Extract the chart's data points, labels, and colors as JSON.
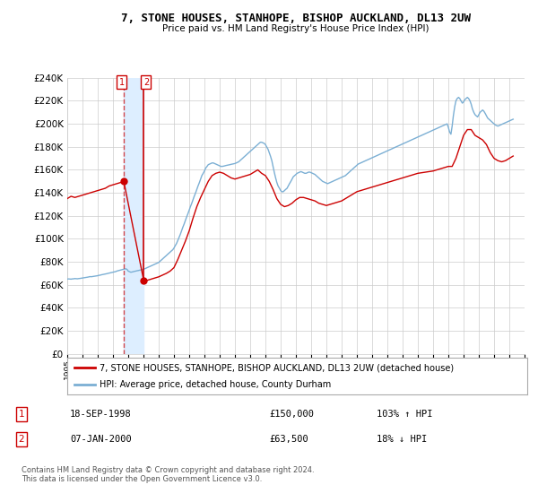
{
  "title": "7, STONE HOUSES, STANHOPE, BISHOP AUCKLAND, DL13 2UW",
  "subtitle": "Price paid vs. HM Land Registry's House Price Index (HPI)",
  "ylim": [
    0,
    240000
  ],
  "yticks": [
    0,
    20000,
    40000,
    60000,
    80000,
    100000,
    120000,
    140000,
    160000,
    180000,
    200000,
    220000,
    240000
  ],
  "background_color": "#ffffff",
  "grid_color": "#cccccc",
  "hpi_color": "#7bafd4",
  "price_color": "#cc0000",
  "shade_color": "#ddeeff",
  "t1_date": 1998.71,
  "t1_price": 150000,
  "t2_date": 2000.02,
  "t2_price": 63500,
  "legend_line1": "7, STONE HOUSES, STANHOPE, BISHOP AUCKLAND, DL13 2UW (detached house)",
  "legend_line2": "HPI: Average price, detached house, County Durham",
  "row1_date": "18-SEP-1998",
  "row1_price": "£150,000",
  "row1_hpi": "103% ↑ HPI",
  "row2_date": "07-JAN-2000",
  "row2_price": "£63,500",
  "row2_hpi": "18% ↓ HPI",
  "footer": "Contains HM Land Registry data © Crown copyright and database right 2024.\nThis data is licensed under the Open Government Licence v3.0.",
  "hpi_data_x": [
    1995.0,
    1995.08,
    1995.17,
    1995.25,
    1995.33,
    1995.42,
    1995.5,
    1995.58,
    1995.67,
    1995.75,
    1995.83,
    1995.92,
    1996.0,
    1996.08,
    1996.17,
    1996.25,
    1996.33,
    1996.42,
    1996.5,
    1996.58,
    1996.67,
    1996.75,
    1996.83,
    1996.92,
    1997.0,
    1997.08,
    1997.17,
    1997.25,
    1997.33,
    1997.42,
    1997.5,
    1997.58,
    1997.67,
    1997.75,
    1997.83,
    1997.92,
    1998.0,
    1998.08,
    1998.17,
    1998.25,
    1998.33,
    1998.42,
    1998.5,
    1998.58,
    1998.67,
    1998.75,
    1998.83,
    1998.92,
    1999.0,
    1999.08,
    1999.17,
    1999.25,
    1999.33,
    1999.42,
    1999.5,
    1999.58,
    1999.67,
    1999.75,
    1999.83,
    1999.92,
    2000.0,
    2000.08,
    2000.17,
    2000.25,
    2000.33,
    2000.42,
    2000.5,
    2000.58,
    2000.67,
    2000.75,
    2000.83,
    2000.92,
    2001.0,
    2001.08,
    2001.17,
    2001.25,
    2001.33,
    2001.42,
    2001.5,
    2001.58,
    2001.67,
    2001.75,
    2001.83,
    2001.92,
    2002.0,
    2002.08,
    2002.17,
    2002.25,
    2002.33,
    2002.42,
    2002.5,
    2002.58,
    2002.67,
    2002.75,
    2002.83,
    2002.92,
    2003.0,
    2003.08,
    2003.17,
    2003.25,
    2003.33,
    2003.42,
    2003.5,
    2003.58,
    2003.67,
    2003.75,
    2003.83,
    2003.92,
    2004.0,
    2004.08,
    2004.17,
    2004.25,
    2004.33,
    2004.42,
    2004.5,
    2004.58,
    2004.67,
    2004.75,
    2004.83,
    2004.92,
    2005.0,
    2005.08,
    2005.17,
    2005.25,
    2005.33,
    2005.42,
    2005.5,
    2005.58,
    2005.67,
    2005.75,
    2005.83,
    2005.92,
    2006.0,
    2006.08,
    2006.17,
    2006.25,
    2006.33,
    2006.42,
    2006.5,
    2006.58,
    2006.67,
    2006.75,
    2006.83,
    2006.92,
    2007.0,
    2007.08,
    2007.17,
    2007.25,
    2007.33,
    2007.42,
    2007.5,
    2007.58,
    2007.67,
    2007.75,
    2007.83,
    2007.92,
    2008.0,
    2008.08,
    2008.17,
    2008.25,
    2008.33,
    2008.42,
    2008.5,
    2008.58,
    2008.67,
    2008.75,
    2008.83,
    2008.92,
    2009.0,
    2009.08,
    2009.17,
    2009.25,
    2009.33,
    2009.42,
    2009.5,
    2009.58,
    2009.67,
    2009.75,
    2009.83,
    2009.92,
    2010.0,
    2010.08,
    2010.17,
    2010.25,
    2010.33,
    2010.42,
    2010.5,
    2010.58,
    2010.67,
    2010.75,
    2010.83,
    2010.92,
    2011.0,
    2011.08,
    2011.17,
    2011.25,
    2011.33,
    2011.42,
    2011.5,
    2011.58,
    2011.67,
    2011.75,
    2011.83,
    2011.92,
    2012.0,
    2012.08,
    2012.17,
    2012.25,
    2012.33,
    2012.42,
    2012.5,
    2012.58,
    2012.67,
    2012.75,
    2012.83,
    2012.92,
    2013.0,
    2013.08,
    2013.17,
    2013.25,
    2013.33,
    2013.42,
    2013.5,
    2013.58,
    2013.67,
    2013.75,
    2013.83,
    2013.92,
    2014.0,
    2014.08,
    2014.17,
    2014.25,
    2014.33,
    2014.42,
    2014.5,
    2014.58,
    2014.67,
    2014.75,
    2014.83,
    2014.92,
    2015.0,
    2015.08,
    2015.17,
    2015.25,
    2015.33,
    2015.42,
    2015.5,
    2015.58,
    2015.67,
    2015.75,
    2015.83,
    2015.92,
    2016.0,
    2016.08,
    2016.17,
    2016.25,
    2016.33,
    2016.42,
    2016.5,
    2016.58,
    2016.67,
    2016.75,
    2016.83,
    2016.92,
    2017.0,
    2017.08,
    2017.17,
    2017.25,
    2017.33,
    2017.42,
    2017.5,
    2017.58,
    2017.67,
    2017.75,
    2017.83,
    2017.92,
    2018.0,
    2018.08,
    2018.17,
    2018.25,
    2018.33,
    2018.42,
    2018.5,
    2018.58,
    2018.67,
    2018.75,
    2018.83,
    2018.92,
    2019.0,
    2019.08,
    2019.17,
    2019.25,
    2019.33,
    2019.42,
    2019.5,
    2019.58,
    2019.67,
    2019.75,
    2019.83,
    2019.92,
    2020.0,
    2020.08,
    2020.17,
    2020.25,
    2020.33,
    2020.42,
    2020.5,
    2020.58,
    2020.67,
    2020.75,
    2020.83,
    2020.92,
    2021.0,
    2021.08,
    2021.17,
    2021.25,
    2021.33,
    2021.42,
    2021.5,
    2021.58,
    2021.67,
    2021.75,
    2021.83,
    2021.92,
    2022.0,
    2022.08,
    2022.17,
    2022.25,
    2022.33,
    2022.42,
    2022.5,
    2022.58,
    2022.67,
    2022.75,
    2022.83,
    2022.92,
    2023.0,
    2023.08,
    2023.17,
    2023.25,
    2023.33,
    2023.42,
    2023.5,
    2023.58,
    2023.67,
    2023.75,
    2023.83,
    2023.92,
    2024.0,
    2024.08,
    2024.17,
    2024.25
  ],
  "hpi_data_y": [
    65000,
    65200,
    65100,
    65000,
    65200,
    65300,
    65500,
    65400,
    65300,
    65500,
    65600,
    65800,
    66000,
    66200,
    66400,
    66500,
    66700,
    67000,
    67200,
    67100,
    67300,
    67500,
    67700,
    67900,
    68000,
    68300,
    68500,
    68800,
    69000,
    69300,
    69500,
    69700,
    70000,
    70200,
    70500,
    70800,
    71000,
    71300,
    71500,
    72000,
    72300,
    72700,
    73000,
    73300,
    73600,
    73800,
    74000,
    73500,
    72000,
    71500,
    71000,
    71200,
    71500,
    71800,
    72000,
    72300,
    72500,
    72800,
    73000,
    73200,
    73500,
    74000,
    74500,
    75000,
    75500,
    76000,
    76500,
    77000,
    77500,
    78000,
    78500,
    79000,
    79500,
    80500,
    81500,
    82500,
    83500,
    84500,
    85500,
    86500,
    87500,
    88500,
    89500,
    90500,
    92000,
    94000,
    96000,
    98500,
    101000,
    104000,
    107000,
    110000,
    113000,
    116000,
    119000,
    122000,
    125000,
    128000,
    131000,
    134000,
    137000,
    140000,
    143000,
    146000,
    149000,
    152000,
    155000,
    157000,
    159000,
    161500,
    163000,
    164500,
    165000,
    165500,
    166000,
    166000,
    165500,
    165000,
    164500,
    164000,
    163500,
    163000,
    163000,
    163200,
    163500,
    163800,
    164000,
    164200,
    164500,
    164800,
    165000,
    165200,
    165500,
    166000,
    166500,
    167000,
    168000,
    169000,
    170000,
    171000,
    172000,
    173000,
    174000,
    175000,
    176000,
    177000,
    178000,
    179000,
    180000,
    181000,
    182000,
    183000,
    184000,
    184000,
    183500,
    183000,
    182000,
    180000,
    178000,
    175000,
    172000,
    168000,
    163000,
    158000,
    153000,
    149000,
    146000,
    144000,
    142000,
    141000,
    141000,
    142000,
    143000,
    144000,
    146000,
    148000,
    150000,
    152000,
    154000,
    155000,
    156000,
    157000,
    157500,
    158000,
    158500,
    158000,
    157500,
    157000,
    157000,
    157500,
    158000,
    158000,
    157500,
    157000,
    156500,
    156000,
    155000,
    154000,
    153000,
    152000,
    151000,
    150000,
    149500,
    149000,
    148500,
    148000,
    148500,
    149000,
    149500,
    150000,
    150500,
    151000,
    151500,
    152000,
    152500,
    153000,
    153500,
    154000,
    154500,
    155000,
    156000,
    157000,
    158000,
    159000,
    160000,
    161000,
    162000,
    163000,
    164000,
    165000,
    165500,
    166000,
    166500,
    167000,
    167500,
    168000,
    168500,
    169000,
    169500,
    170000,
    170500,
    171000,
    171500,
    172000,
    172500,
    173000,
    173500,
    174000,
    174500,
    175000,
    175500,
    176000,
    176500,
    177000,
    177500,
    178000,
    178500,
    179000,
    179500,
    180000,
    180500,
    181000,
    181500,
    182000,
    182500,
    183000,
    183500,
    184000,
    184500,
    185000,
    185500,
    186000,
    186500,
    187000,
    187500,
    188000,
    188500,
    189000,
    189500,
    190000,
    190500,
    191000,
    191500,
    192000,
    192500,
    193000,
    193500,
    194000,
    194500,
    195000,
    195500,
    196000,
    196500,
    197000,
    197500,
    198000,
    198500,
    199000,
    199500,
    200000,
    197000,
    193000,
    191000,
    198000,
    207000,
    215000,
    220000,
    222000,
    223000,
    222000,
    220000,
    218000,
    219000,
    221000,
    222000,
    223000,
    222000,
    220000,
    217000,
    213000,
    210000,
    208000,
    207000,
    206000,
    208000,
    210000,
    211000,
    212000,
    211000,
    209000,
    207000,
    205000,
    204000,
    203000,
    202000,
    201000,
    200000,
    199000,
    198500,
    198000,
    198500,
    199000,
    199500,
    200000,
    200500,
    201000,
    201500,
    202000,
    202500,
    203000,
    203500,
    204000
  ],
  "price_data_x": [
    1995.0,
    1995.25,
    1995.5,
    1995.75,
    1996.0,
    1996.25,
    1996.5,
    1996.75,
    1997.0,
    1997.25,
    1997.5,
    1997.75,
    1998.0,
    1998.25,
    1998.5,
    1998.75,
    1998.71,
    2000.02,
    2000.25,
    2000.5,
    2000.75,
    2001.0,
    2001.25,
    2001.5,
    2001.75,
    2002.0,
    2002.25,
    2002.5,
    2002.75,
    2003.0,
    2003.25,
    2003.5,
    2003.75,
    2004.0,
    2004.25,
    2004.5,
    2004.75,
    2005.0,
    2005.25,
    2005.5,
    2005.75,
    2006.0,
    2006.25,
    2006.5,
    2006.75,
    2007.0,
    2007.25,
    2007.5,
    2007.75,
    2008.0,
    2008.25,
    2008.5,
    2008.75,
    2009.0,
    2009.25,
    2009.5,
    2009.75,
    2010.0,
    2010.25,
    2010.5,
    2010.75,
    2011.0,
    2011.25,
    2011.5,
    2011.75,
    2012.0,
    2012.25,
    2012.5,
    2012.75,
    2013.0,
    2013.25,
    2013.5,
    2013.75,
    2014.0,
    2014.25,
    2014.5,
    2014.75,
    2015.0,
    2015.25,
    2015.5,
    2015.75,
    2016.0,
    2016.25,
    2016.5,
    2016.75,
    2017.0,
    2017.25,
    2017.5,
    2017.75,
    2018.0,
    2018.25,
    2018.5,
    2018.75,
    2019.0,
    2019.25,
    2019.5,
    2019.75,
    2020.0,
    2020.25,
    2020.5,
    2020.75,
    2021.0,
    2021.25,
    2021.5,
    2021.75,
    2022.0,
    2022.25,
    2022.5,
    2022.75,
    2023.0,
    2023.25,
    2023.5,
    2023.75,
    2024.0,
    2024.25
  ],
  "price_data_y": [
    135000,
    137000,
    136000,
    137000,
    138000,
    139000,
    140000,
    141000,
    142000,
    143000,
    144000,
    146000,
    147000,
    148000,
    149000,
    150000,
    150000,
    63500,
    64000,
    65000,
    66000,
    67000,
    68500,
    70000,
    72000,
    75000,
    82000,
    90000,
    98000,
    107000,
    118000,
    128000,
    136000,
    143000,
    150000,
    155000,
    157000,
    158000,
    157000,
    155000,
    153000,
    152000,
    153000,
    154000,
    155000,
    156000,
    158000,
    160000,
    157000,
    155000,
    150000,
    143000,
    135000,
    130000,
    128000,
    129000,
    131000,
    134000,
    136000,
    136000,
    135000,
    134000,
    133000,
    131000,
    130000,
    129000,
    130000,
    131000,
    132000,
    133000,
    135000,
    137000,
    139000,
    141000,
    142000,
    143000,
    144000,
    145000,
    146000,
    147000,
    148000,
    149000,
    150000,
    151000,
    152000,
    153000,
    154000,
    155000,
    156000,
    157000,
    157500,
    158000,
    158500,
    159000,
    160000,
    161000,
    162000,
    163000,
    163000,
    170000,
    180000,
    190000,
    195000,
    195000,
    190000,
    188000,
    186000,
    182000,
    175000,
    170000,
    168000,
    167000,
    168000,
    170000,
    172000
  ]
}
